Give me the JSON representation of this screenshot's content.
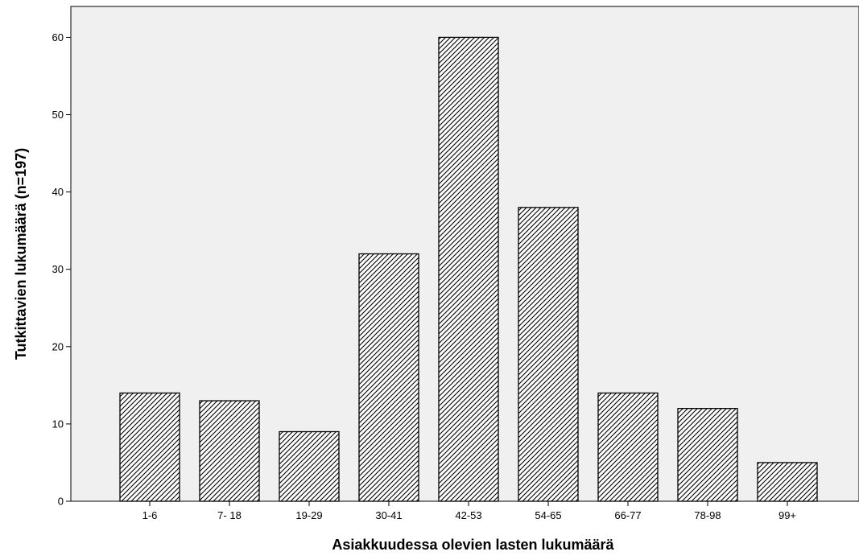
{
  "colors": {
    "plot_background": "#f0f0f0",
    "bar_stroke": "#000000",
    "bar_hatch": "#000000",
    "bar_fill": "#ffffff"
  },
  "chart_data": {
    "type": "bar",
    "categories": [
      "1-6",
      "7- 18",
      "19-29",
      "30-41",
      "42-53",
      "54-65",
      "66-77",
      "78-98",
      "99+"
    ],
    "values": [
      14,
      13,
      9,
      32,
      60,
      38,
      14,
      12,
      5
    ],
    "xlabel": "Asiakkuudessa olevien lasten lukumäärä",
    "ylabel": "Tutkittavien lukumäärä (n=197)",
    "ylim": [
      0,
      64
    ],
    "yticks": [
      0,
      10,
      20,
      30,
      40,
      50,
      60
    ],
    "grid": false,
    "bar_pattern": "diagonal-hatch"
  }
}
